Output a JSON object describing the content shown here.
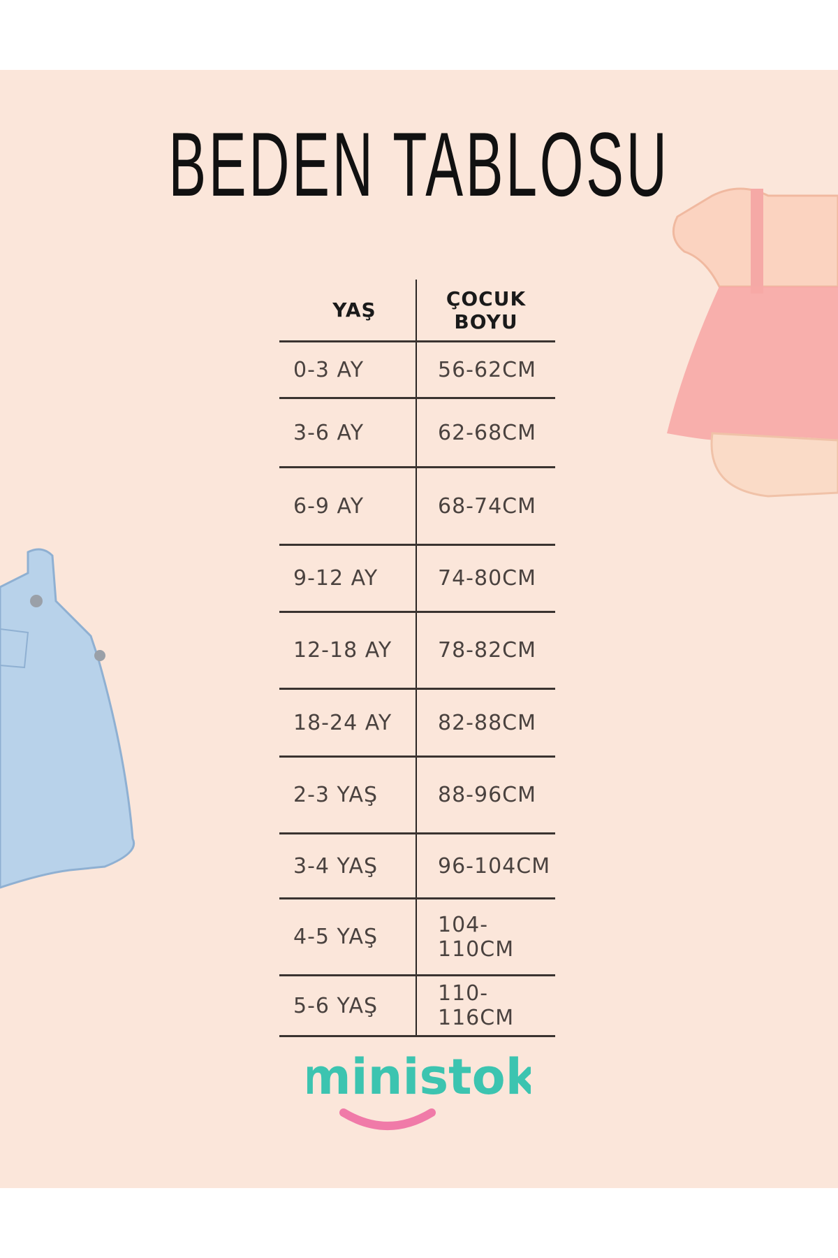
{
  "title": "BEDEN TABLOSU",
  "table": {
    "headers": [
      "YAŞ",
      "ÇOCUK",
      "BOYU"
    ],
    "rows": [
      {
        "age": "0-3 AY",
        "height": "56-62CM"
      },
      {
        "age": "3-6 AY",
        "height": "62-68CM"
      },
      {
        "age": "6-9 AY",
        "height": "68-74CM"
      },
      {
        "age": "9-12 AY",
        "height": "74-80CM"
      },
      {
        "age": "12-18 AY",
        "height": "78-82CM"
      },
      {
        "age": "18-24 AY",
        "height": "82-88CM"
      },
      {
        "age": "2-3 YAŞ",
        "height": "88-96CM"
      },
      {
        "age": "3-4 YAŞ",
        "height": "96-104CM"
      },
      {
        "age": "4-5 YAŞ",
        "height": "104-110CM"
      },
      {
        "age": "5-6 YAŞ",
        "height": "110-116CM"
      }
    ]
  },
  "logo": {
    "text": "ministok",
    "text_color": "#3cc4b0",
    "smile_color": "#f07aa8"
  },
  "colors": {
    "background": "#fbe6da"
  }
}
